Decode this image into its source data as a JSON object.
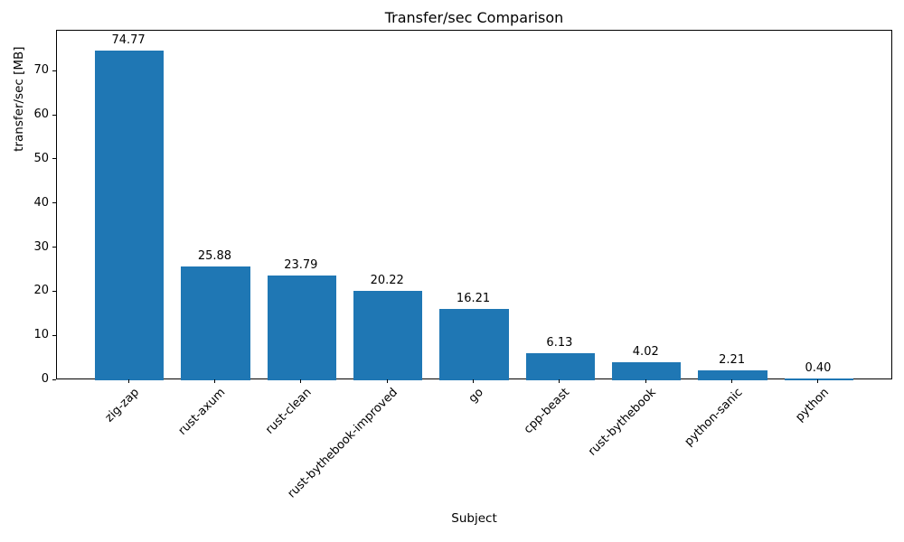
{
  "chart_data": {
    "type": "bar",
    "title": "Transfer/sec Comparison",
    "xlabel": "Subject",
    "ylabel": "transfer/sec [MB]",
    "categories": [
      "zig-zap",
      "rust-axum",
      "rust-clean",
      "rust-bythebook-improved",
      "go",
      "cpp-beast",
      "rust-bythebook",
      "python-sanic",
      "python"
    ],
    "values": [
      74.77,
      25.88,
      23.79,
      20.22,
      16.21,
      6.13,
      4.02,
      2.21,
      0.4
    ],
    "value_labels": [
      "74.77",
      "25.88",
      "23.79",
      "20.22",
      "16.21",
      "6.13",
      "4.02",
      "2.21",
      "0.40"
    ],
    "yticks": [
      0,
      10,
      20,
      30,
      40,
      50,
      60,
      70
    ],
    "ylim": [
      0,
      79.3
    ],
    "xlim": [
      -0.84,
      8.86
    ],
    "bar_width": 0.8,
    "bar_color": "#1f77b4",
    "background_color": "#ffffff",
    "grid": false,
    "legend": null,
    "x_tick_rotation_deg": 45
  }
}
